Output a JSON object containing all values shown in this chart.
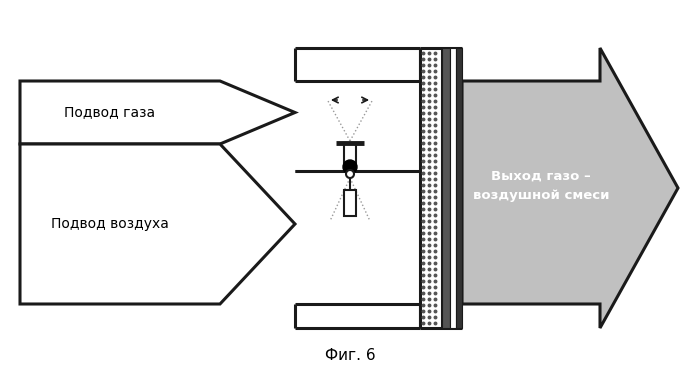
{
  "bg_color": "#ffffff",
  "fig_label": "Фиг. 6",
  "text_gas_inlet": "Подвод газа",
  "text_air_inlet": "Подвод воздуха",
  "text_outlet": "Выход газо –\nвоздушной смеси",
  "line_color": "#1a1a1a",
  "fill_gray": "#c0c0c0",
  "outlet_text_color": "#ffffff"
}
